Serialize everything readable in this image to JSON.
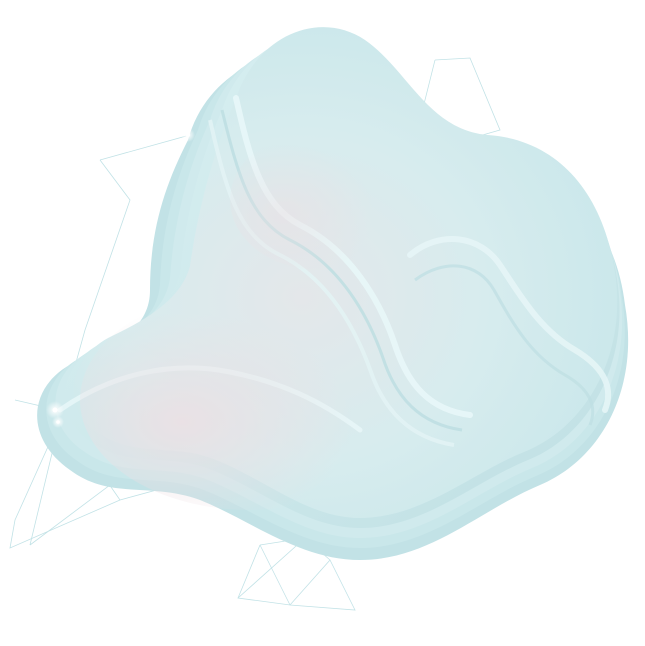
{
  "artwork": {
    "icon": "abstract-fluid-shape",
    "colors": {
      "background": "#ffffff",
      "shape_light": "#d5eef0",
      "shape_mid": "#c4e6e9",
      "shape_shadow": "#bfdfe3",
      "rim_highlight": "#e8f7f8",
      "pink_tint": "#eddfe3",
      "wire_line": "#b7dde2",
      "sparkle": "#ffffff"
    }
  }
}
